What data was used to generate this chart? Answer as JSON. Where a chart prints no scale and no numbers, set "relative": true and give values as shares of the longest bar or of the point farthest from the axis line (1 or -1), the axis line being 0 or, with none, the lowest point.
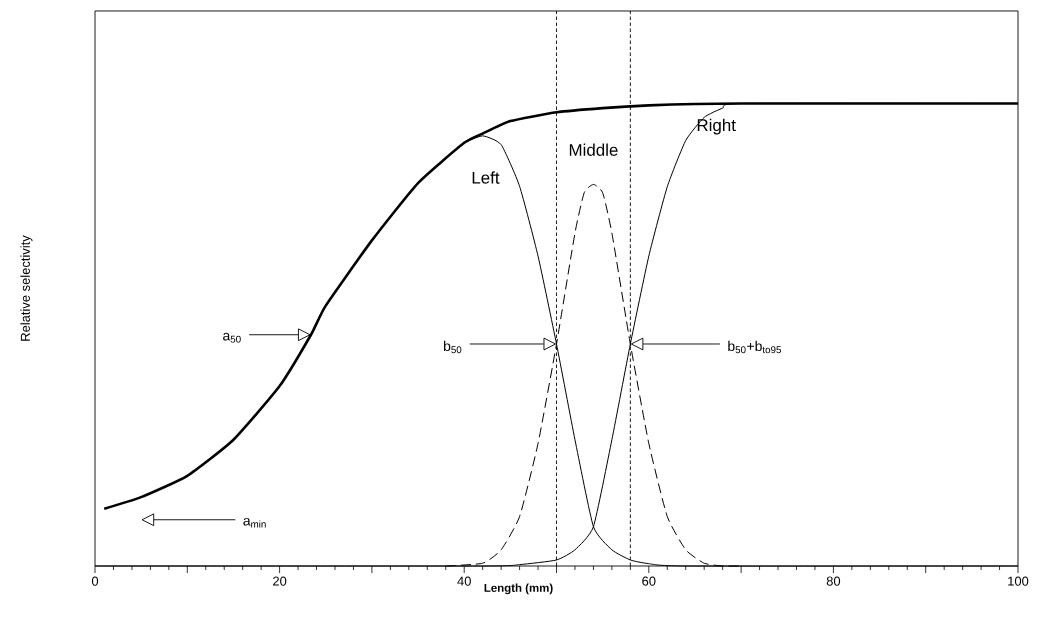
{
  "chart_data": {
    "type": "line",
    "relative": true,
    "xlabel": "Length (mm)",
    "ylabel": "Relative selectivity",
    "xlim": [
      0,
      100
    ],
    "xticks": [
      0,
      {
        "value": 10,
        "label": null
      },
      20,
      {
        "value": 30,
        "label": null
      },
      40,
      {
        "value": 50,
        "label": null
      },
      60,
      {
        "value": 70,
        "label": null
      },
      80,
      {
        "value": 90,
        "label": null
      },
      100
    ],
    "series": [
      {
        "color": "#000000",
        "line_style": "solid",
        "x": [
          1,
          5,
          10,
          15,
          20,
          23.4,
          25,
          30,
          35,
          40,
          42,
          45,
          50,
          55,
          60,
          65,
          70,
          100
        ],
        "values": [
          0.124,
          0.149,
          0.195,
          0.273,
          0.389,
          0.5,
          0.563,
          0.704,
          0.828,
          0.915,
          0.935,
          0.962,
          0.981,
          0.99,
          0.996,
          0.999,
          1,
          1
        ]
      },
      {
        "name": "Left",
        "color": "#000000",
        "line_style": "solid",
        "x": [
          40,
          42,
          44,
          46,
          48,
          50,
          52,
          54,
          56,
          58,
          60,
          64,
          100
        ],
        "values": [
          0.915,
          0.93,
          0.911,
          0.821,
          0.67,
          0.48,
          0.273,
          0.085,
          0.035,
          0.013,
          0.005,
          0,
          0
        ]
      },
      {
        "name": "Middle",
        "color": "#000000",
        "line_style": "dashed",
        "x": [
          38,
          42,
          44,
          46,
          48,
          50,
          52,
          53,
          54,
          55,
          56,
          58,
          60,
          62,
          64,
          66,
          68,
          70
        ],
        "values": [
          0,
          0.006,
          0.035,
          0.107,
          0.265,
          0.48,
          0.72,
          0.807,
          0.825,
          0.807,
          0.72,
          0.48,
          0.265,
          0.107,
          0.035,
          0.006,
          0,
          0
        ]
      },
      {
        "name": "Right",
        "color": "#000000",
        "line_style": "solid",
        "x": [
          0,
          42,
          46,
          50,
          52,
          54,
          56,
          58,
          60,
          62,
          64,
          66,
          68,
          70,
          100
        ],
        "values": [
          0,
          0,
          0.003,
          0.013,
          0.035,
          0.085,
          0.273,
          0.48,
          0.67,
          0.82,
          0.92,
          0.97,
          0.99,
          1,
          1
        ]
      }
    ],
    "ref_lines": [
      {
        "axis": "x",
        "value": 50,
        "line_style": "dashed"
      },
      {
        "axis": "x",
        "value": 58,
        "line_style": "dashed"
      }
    ],
    "annotations": [
      "a$_{50}$",
      "b$_{50}$",
      "b$_{50}$+b$_{to95}$",
      "a$_{min}$"
    ]
  }
}
